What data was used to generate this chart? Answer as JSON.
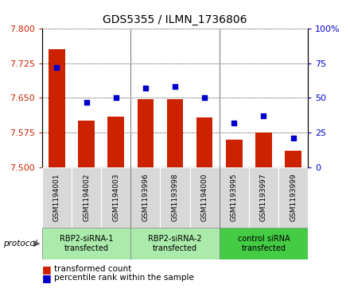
{
  "title": "GDS5355 / ILMN_1736806",
  "samples": [
    "GSM1194001",
    "GSM1194002",
    "GSM1194003",
    "GSM1193996",
    "GSM1193998",
    "GSM1194000",
    "GSM1193995",
    "GSM1193997",
    "GSM1193999"
  ],
  "bar_values": [
    7.755,
    7.6,
    7.61,
    7.648,
    7.648,
    7.607,
    7.56,
    7.575,
    7.535
  ],
  "dot_values": [
    72,
    47,
    50,
    57,
    58,
    50,
    32,
    37,
    21
  ],
  "ylim": [
    7.5,
    7.8
  ],
  "y2lim": [
    0,
    100
  ],
  "yticks": [
    7.5,
    7.575,
    7.65,
    7.725,
    7.8
  ],
  "y2ticks": [
    0,
    25,
    50,
    75,
    100
  ],
  "bar_color": "#cc2200",
  "dot_color": "#0000cc",
  "tick_bg_color": "#d8d8d8",
  "group_color_light": "#aaeaaa",
  "group_color_dark": "#44cc44",
  "group_labels": [
    "RBP2-siRNA-1\ntransfected",
    "RBP2-siRNA-2\ntransfected",
    "control siRNA\ntransfected"
  ],
  "group_starts": [
    0,
    3,
    6
  ],
  "group_ends": [
    3,
    6,
    9
  ],
  "protocol_label": "protocol",
  "legend_bar_label": "transformed count",
  "legend_dot_label": "percentile rank within the sample"
}
